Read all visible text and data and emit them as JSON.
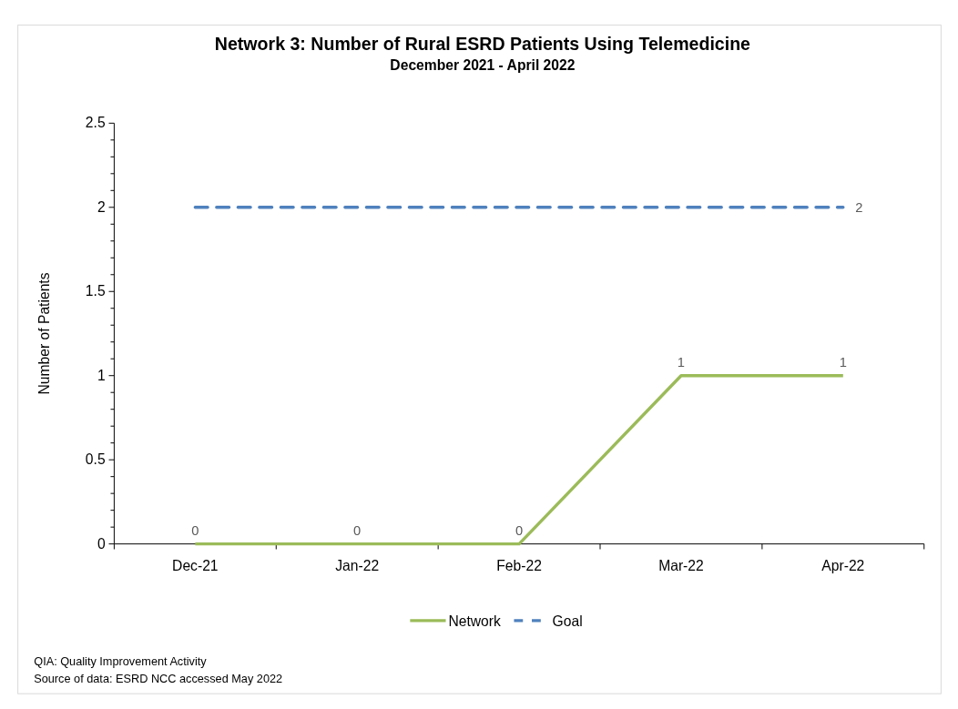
{
  "chart_data": {
    "type": "line",
    "title": "Network 3: Number of Rural ESRD Patients Using Telemedicine",
    "subtitle": "December 2021 - April 2022",
    "ylabel": "Number of Patients",
    "categories": [
      "Dec-21",
      "Jan-22",
      "Feb-22",
      "Mar-22",
      "Apr-22"
    ],
    "series": [
      {
        "name": "Network",
        "color": "#9bbb59",
        "values": [
          0,
          0,
          0,
          1,
          1
        ],
        "value_labels": [
          "0",
          "0",
          "0",
          "1",
          "1"
        ],
        "line_style": "solid"
      },
      {
        "name": "Goal",
        "color": "#4f81bd",
        "values": [
          2,
          2,
          2,
          2,
          2
        ],
        "value_labels": [
          null,
          null,
          null,
          null,
          "2"
        ],
        "line_style": "dashed"
      }
    ],
    "ylim": [
      0,
      2.5
    ],
    "yticks": [
      0,
      {
        "value": 0.1,
        "label": null
      },
      {
        "value": 0.2,
        "label": null
      },
      {
        "value": 0.3,
        "label": null
      },
      {
        "value": 0.4,
        "label": null
      },
      0.5,
      {
        "value": 0.6,
        "label": null
      },
      {
        "value": 0.7,
        "label": null
      },
      {
        "value": 0.8,
        "label": null
      },
      {
        "value": 0.9,
        "label": null
      },
      1,
      {
        "value": 1.1,
        "label": null
      },
      {
        "value": 1.2,
        "label": null
      },
      {
        "value": 1.3,
        "label": null
      },
      {
        "value": 1.4,
        "label": null
      },
      1.5,
      {
        "value": 1.6,
        "label": null
      },
      {
        "value": 1.7,
        "label": null
      },
      {
        "value": 1.8,
        "label": null
      },
      {
        "value": 1.9,
        "label": null
      },
      2,
      {
        "value": 2.1,
        "label": null
      },
      {
        "value": 2.2,
        "label": null
      },
      {
        "value": 2.3,
        "label": null
      },
      {
        "value": 2.4,
        "label": null
      },
      2.5
    ],
    "grid": false,
    "legend": "bottom",
    "marker": "none",
    "annotations": [
      "QIA:  Quality Improvement Activity",
      "Source of data:  ESRD NCC accessed May 2022"
    ]
  }
}
